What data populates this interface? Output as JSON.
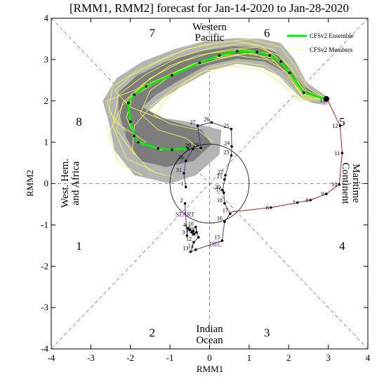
{
  "chart_data": {
    "type": "scatter",
    "title": "[RMM1, RMM2] forecast for Jan-14-2020 to Jan-28-2020",
    "xlabel": "RMM1",
    "ylabel": "RMM2",
    "xlim": [
      -4,
      4
    ],
    "ylim": [
      -4,
      4
    ],
    "x_ticks": [
      "-4",
      "-3",
      "-2",
      "-1",
      "0",
      "1",
      "2",
      "3",
      "4"
    ],
    "y_ticks": [
      "-4",
      "-3",
      "-2",
      "-1",
      "0",
      "1",
      "2",
      "3",
      "4"
    ],
    "phase_labels": [
      {
        "text": "1",
        "x": -3.3,
        "y": -1.5
      },
      {
        "text": "2",
        "x": -1.45,
        "y": -3.6
      },
      {
        "text": "3",
        "x": 1.45,
        "y": -3.6
      },
      {
        "text": "4",
        "x": 3.35,
        "y": -1.5
      },
      {
        "text": "5",
        "x": 3.35,
        "y": 1.5
      },
      {
        "text": "6",
        "x": 1.45,
        "y": 3.65
      },
      {
        "text": "7",
        "x": -1.45,
        "y": 3.65
      },
      {
        "text": "8",
        "x": -3.3,
        "y": 1.5
      }
    ],
    "region_labels": {
      "top": [
        "Western",
        "Pacific"
      ],
      "bottom": [
        "Indian",
        "Ocean"
      ],
      "left": [
        "West. Hem.",
        "and Africa"
      ],
      "right": [
        "Maritime",
        "Continent"
      ]
    },
    "legend": [
      {
        "label": "CFSv2 Ensemble",
        "color": "#00ee00"
      },
      {
        "label": "CFSv2 Members",
        "color": "#ffff66"
      }
    ],
    "observed": {
      "color": "#b22222",
      "days": [
        {
          "label": "6",
          "x": 1.55,
          "y": -0.58
        },
        {
          "label": "7",
          "x": 2.22,
          "y": -0.46
        },
        {
          "label": "8",
          "x": 2.55,
          "y": -0.4
        },
        {
          "label": "9",
          "x": 2.95,
          "y": -0.25
        },
        {
          "label": "10",
          "x": 3.28,
          "y": -0.02
        },
        {
          "label": "11",
          "x": 3.35,
          "y": 0.74
        },
        {
          "label": "12",
          "x": 3.3,
          "y": 1.4
        },
        {
          "label": "13",
          "x": 2.98,
          "y": 2.02
        }
      ],
      "start_x": 0.52,
      "start_y": -0.69
    },
    "previous": {
      "color": "#5b2d8e",
      "start_label": "START",
      "month_label": "DEC",
      "days": [
        {
          "label": "2",
          "x": -0.62,
          "y": -0.48
        },
        {
          "label": "3",
          "x": -0.57,
          "y": -1.26
        },
        {
          "label": "4",
          "x": -0.55,
          "y": -1.08
        },
        {
          "label": "5",
          "x": -0.5,
          "y": -1.12
        },
        {
          "label": "6",
          "x": -0.41,
          "y": -1.15
        },
        {
          "label": "7",
          "x": -0.45,
          "y": -1.18
        },
        {
          "label": "8",
          "x": -0.4,
          "y": -1.22
        },
        {
          "label": "9",
          "x": -0.33,
          "y": -1.18
        },
        {
          "label": "10",
          "x": -0.35,
          "y": -1.05
        },
        {
          "label": "11",
          "x": -0.28,
          "y": -1.3
        },
        {
          "label": "12",
          "x": -0.4,
          "y": -1.42
        },
        {
          "label": "13",
          "x": -0.48,
          "y": -1.65
        },
        {
          "label": "14",
          "x": -0.35,
          "y": -1.6
        },
        {
          "label": "15",
          "x": 0.32,
          "y": -1.38
        },
        {
          "label": "16",
          "x": 0.38,
          "y": -0.92
        },
        {
          "label": "17",
          "x": 0.52,
          "y": -0.73
        },
        {
          "label": "18",
          "x": 0.38,
          "y": -0.48
        },
        {
          "label": "19",
          "x": 0.36,
          "y": -0.22
        },
        {
          "label": "20",
          "x": 0.33,
          "y": -0.16
        },
        {
          "label": "21",
          "x": 0.38,
          "y": 0.1
        },
        {
          "label": "22",
          "x": 0.4,
          "y": 0.2
        },
        {
          "label": "23",
          "x": 0.55,
          "y": 0.68
        },
        {
          "label": "24",
          "x": 0.56,
          "y": 0.9
        },
        {
          "label": "25",
          "x": 0.55,
          "y": 1.32
        },
        {
          "label": "26",
          "x": 0.05,
          "y": 1.48
        },
        {
          "label": "27",
          "x": -0.3,
          "y": 1.4
        },
        {
          "label": "28",
          "x": -0.22,
          "y": 0.86
        },
        {
          "label": "29",
          "x": -0.42,
          "y": 0.84
        },
        {
          "label": "30",
          "x": -0.6,
          "y": 0.55
        },
        {
          "label": "31",
          "x": -0.65,
          "y": 0.25
        },
        {
          "label": "1",
          "x": -0.6,
          "y": -0.08
        }
      ]
    },
    "ensemble_mean": {
      "color": "#00ee00",
      "points": [
        {
          "x": 2.95,
          "y": 2.05
        },
        {
          "x": 2.38,
          "y": 2.2
        },
        {
          "x": 2.02,
          "y": 2.68
        },
        {
          "x": 1.8,
          "y": 2.95
        },
        {
          "x": 1.52,
          "y": 3.1
        },
        {
          "x": 1.2,
          "y": 3.18
        },
        {
          "x": 0.7,
          "y": 3.2
        },
        {
          "x": 0.25,
          "y": 3.1
        },
        {
          "x": -0.25,
          "y": 2.92
        },
        {
          "x": -0.95,
          "y": 2.62
        },
        {
          "x": -1.6,
          "y": 2.35
        },
        {
          "x": -1.9,
          "y": 2.15
        },
        {
          "x": -2.05,
          "y": 1.95
        },
        {
          "x": -2.0,
          "y": 1.5
        },
        {
          "x": -1.9,
          "y": 1.15
        },
        {
          "x": -1.8,
          "y": 1.0
        },
        {
          "x": -1.3,
          "y": 0.85
        },
        {
          "x": -0.95,
          "y": 0.82
        },
        {
          "x": -0.55,
          "y": 0.85
        }
      ]
    },
    "spread_outer": [
      {
        "x": 3.05,
        "y": 2.05
      },
      {
        "x": 2.95,
        "y": 1.9
      },
      {
        "x": 2.6,
        "y": 1.95
      },
      {
        "x": 2.35,
        "y": 2.05
      },
      {
        "x": 2.05,
        "y": 2.3
      },
      {
        "x": 1.75,
        "y": 2.6
      },
      {
        "x": 1.35,
        "y": 2.8
      },
      {
        "x": 0.7,
        "y": 2.9
      },
      {
        "x": 0.05,
        "y": 2.75
      },
      {
        "x": -0.7,
        "y": 2.35
      },
      {
        "x": -1.2,
        "y": 2.05
      },
      {
        "x": -1.55,
        "y": 1.75
      },
      {
        "x": -1.25,
        "y": 1.6
      },
      {
        "x": -0.55,
        "y": 1.5
      },
      {
        "x": 0.3,
        "y": 1.3
      },
      {
        "x": 0.25,
        "y": 0.7
      },
      {
        "x": -0.35,
        "y": 0.2
      },
      {
        "x": -1.0,
        "y": 0.0
      },
      {
        "x": -1.9,
        "y": 0.2
      },
      {
        "x": -2.4,
        "y": 0.8
      },
      {
        "x": -2.55,
        "y": 1.5
      },
      {
        "x": -2.7,
        "y": 2.0
      },
      {
        "x": -2.35,
        "y": 2.55
      },
      {
        "x": -1.7,
        "y": 2.95
      },
      {
        "x": -0.9,
        "y": 3.25
      },
      {
        "x": -0.1,
        "y": 3.45
      },
      {
        "x": 0.65,
        "y": 3.52
      },
      {
        "x": 1.3,
        "y": 3.5
      },
      {
        "x": 1.8,
        "y": 3.4
      },
      {
        "x": 2.15,
        "y": 3.0
      },
      {
        "x": 2.45,
        "y": 2.45
      }
    ],
    "spread_inner": [
      {
        "x": 2.95,
        "y": 2.02
      },
      {
        "x": 2.55,
        "y": 2.1
      },
      {
        "x": 2.2,
        "y": 2.35
      },
      {
        "x": 1.85,
        "y": 2.72
      },
      {
        "x": 1.4,
        "y": 2.95
      },
      {
        "x": 0.7,
        "y": 3.02
      },
      {
        "x": -0.1,
        "y": 2.85
      },
      {
        "x": -0.85,
        "y": 2.45
      },
      {
        "x": -1.35,
        "y": 2.15
      },
      {
        "x": -1.7,
        "y": 1.85
      },
      {
        "x": -1.1,
        "y": 1.55
      },
      {
        "x": -0.2,
        "y": 1.3
      },
      {
        "x": 0.05,
        "y": 0.95
      },
      {
        "x": -0.4,
        "y": 0.55
      },
      {
        "x": -1.1,
        "y": 0.4
      },
      {
        "x": -1.75,
        "y": 0.55
      },
      {
        "x": -2.1,
        "y": 1.1
      },
      {
        "x": -2.3,
        "y": 1.75
      },
      {
        "x": -2.3,
        "y": 2.2
      },
      {
        "x": -1.85,
        "y": 2.6
      },
      {
        "x": -1.1,
        "y": 2.95
      },
      {
        "x": -0.25,
        "y": 3.2
      },
      {
        "x": 0.6,
        "y": 3.32
      },
      {
        "x": 1.25,
        "y": 3.3
      },
      {
        "x": 1.7,
        "y": 3.18
      },
      {
        "x": 2.05,
        "y": 2.8
      },
      {
        "x": 2.4,
        "y": 2.35
      }
    ],
    "members": [
      [
        {
          "x": 2.95,
          "y": 2.05
        },
        {
          "x": 2.35,
          "y": 2.15
        },
        {
          "x": 1.95,
          "y": 2.65
        },
        {
          "x": 1.55,
          "y": 3.05
        },
        {
          "x": 0.9,
          "y": 3.15
        },
        {
          "x": 0.2,
          "y": 3.0
        },
        {
          "x": -0.55,
          "y": 2.8
        },
        {
          "x": -1.35,
          "y": 2.45
        },
        {
          "x": -1.95,
          "y": 2.1
        },
        {
          "x": -2.1,
          "y": 1.6
        },
        {
          "x": -1.85,
          "y": 1.05
        },
        {
          "x": -1.2,
          "y": 0.8
        }
      ],
      [
        {
          "x": 2.95,
          "y": 2.05
        },
        {
          "x": 2.45,
          "y": 2.25
        },
        {
          "x": 2.05,
          "y": 2.8
        },
        {
          "x": 1.6,
          "y": 3.25
        },
        {
          "x": 0.9,
          "y": 3.4
        },
        {
          "x": 0.1,
          "y": 3.3
        },
        {
          "x": -0.8,
          "y": 3.05
        },
        {
          "x": -1.6,
          "y": 2.65
        },
        {
          "x": -2.3,
          "y": 2.15
        },
        {
          "x": -2.45,
          "y": 1.4
        },
        {
          "x": -2.1,
          "y": 0.6
        },
        {
          "x": -1.4,
          "y": 0.3
        }
      ],
      [
        {
          "x": 2.95,
          "y": 2.05
        },
        {
          "x": 2.3,
          "y": 2.05
        },
        {
          "x": 1.9,
          "y": 2.5
        },
        {
          "x": 1.4,
          "y": 2.85
        },
        {
          "x": 0.7,
          "y": 2.95
        },
        {
          "x": 0.0,
          "y": 2.8
        },
        {
          "x": -0.6,
          "y": 2.45
        },
        {
          "x": -1.1,
          "y": 2.05
        },
        {
          "x": -1.4,
          "y": 1.65
        },
        {
          "x": -1.0,
          "y": 1.45
        },
        {
          "x": -0.3,
          "y": 1.3
        },
        {
          "x": 0.1,
          "y": 1.0
        }
      ],
      [
        {
          "x": 2.95,
          "y": 2.05
        },
        {
          "x": 2.4,
          "y": 2.2
        },
        {
          "x": 2.1,
          "y": 2.7
        },
        {
          "x": 1.75,
          "y": 3.1
        },
        {
          "x": 1.2,
          "y": 3.3
        },
        {
          "x": 0.5,
          "y": 3.25
        },
        {
          "x": -0.3,
          "y": 3.1
        },
        {
          "x": -1.0,
          "y": 2.85
        },
        {
          "x": -1.7,
          "y": 2.4
        },
        {
          "x": -2.2,
          "y": 1.95
        },
        {
          "x": -2.35,
          "y": 1.3
        },
        {
          "x": -1.9,
          "y": 0.7
        }
      ],
      [
        {
          "x": 2.95,
          "y": 2.05
        },
        {
          "x": 2.35,
          "y": 2.1
        },
        {
          "x": 2.0,
          "y": 2.6
        },
        {
          "x": 1.65,
          "y": 2.95
        },
        {
          "x": 1.1,
          "y": 3.15
        },
        {
          "x": 0.4,
          "y": 3.1
        },
        {
          "x": -0.4,
          "y": 2.9
        },
        {
          "x": -1.1,
          "y": 2.6
        },
        {
          "x": -1.8,
          "y": 2.3
        },
        {
          "x": -2.6,
          "y": 2.0
        },
        {
          "x": -2.4,
          "y": 1.5
        },
        {
          "x": -1.6,
          "y": 1.0
        }
      ],
      [
        {
          "x": 2.95,
          "y": 2.05
        },
        {
          "x": 2.5,
          "y": 2.3
        },
        {
          "x": 2.15,
          "y": 2.85
        },
        {
          "x": 1.8,
          "y": 3.3
        },
        {
          "x": 1.0,
          "y": 3.5
        },
        {
          "x": 0.2,
          "y": 3.4
        },
        {
          "x": -0.6,
          "y": 3.25
        },
        {
          "x": -1.4,
          "y": 2.9
        },
        {
          "x": -2.0,
          "y": 2.6
        },
        {
          "x": -2.4,
          "y": 2.25
        },
        {
          "x": -2.0,
          "y": 1.85
        },
        {
          "x": -1.2,
          "y": 1.55
        }
      ],
      [
        {
          "x": 2.95,
          "y": 2.05
        },
        {
          "x": 2.3,
          "y": 2.0
        },
        {
          "x": 1.85,
          "y": 2.4
        },
        {
          "x": 1.3,
          "y": 2.75
        },
        {
          "x": 0.6,
          "y": 2.85
        },
        {
          "x": -0.2,
          "y": 2.7
        },
        {
          "x": -0.9,
          "y": 2.3
        },
        {
          "x": -1.45,
          "y": 1.9
        },
        {
          "x": -1.9,
          "y": 1.4
        },
        {
          "x": -1.95,
          "y": 0.8
        },
        {
          "x": -1.5,
          "y": 0.3
        },
        {
          "x": -0.9,
          "y": 0.15
        }
      ],
      [
        {
          "x": 2.95,
          "y": 2.05
        },
        {
          "x": 2.4,
          "y": 2.15
        },
        {
          "x": 2.0,
          "y": 2.75
        },
        {
          "x": 1.5,
          "y": 3.15
        },
        {
          "x": 0.8,
          "y": 3.25
        },
        {
          "x": 0.0,
          "y": 3.15
        },
        {
          "x": -0.7,
          "y": 2.95
        },
        {
          "x": -1.5,
          "y": 2.55
        },
        {
          "x": -2.2,
          "y": 1.9
        },
        {
          "x": -2.55,
          "y": 1.2
        },
        {
          "x": -2.3,
          "y": 0.5
        },
        {
          "x": -1.7,
          "y": 0.2
        }
      ],
      [
        {
          "x": 2.95,
          "y": 2.05
        },
        {
          "x": 2.35,
          "y": 2.2
        },
        {
          "x": 1.95,
          "y": 2.7
        },
        {
          "x": 1.45,
          "y": 3.0
        },
        {
          "x": 0.7,
          "y": 3.1
        },
        {
          "x": -0.1,
          "y": 3.0
        },
        {
          "x": -0.85,
          "y": 2.7
        },
        {
          "x": -1.5,
          "y": 2.25
        },
        {
          "x": -1.75,
          "y": 1.7
        },
        {
          "x": -1.3,
          "y": 1.3
        },
        {
          "x": -0.6,
          "y": 1.1
        },
        {
          "x": -0.2,
          "y": 0.8
        }
      ],
      [
        {
          "x": 2.95,
          "y": 2.05
        },
        {
          "x": 2.45,
          "y": 2.2
        },
        {
          "x": 2.05,
          "y": 2.65
        },
        {
          "x": 1.7,
          "y": 3.05
        },
        {
          "x": 1.25,
          "y": 3.35
        },
        {
          "x": 0.6,
          "y": 3.45
        },
        {
          "x": -0.2,
          "y": 3.35
        },
        {
          "x": -1.0,
          "y": 3.1
        },
        {
          "x": -1.8,
          "y": 2.75
        },
        {
          "x": -2.45,
          "y": 2.35
        },
        {
          "x": -2.55,
          "y": 1.75
        },
        {
          "x": -2.1,
          "y": 1.25
        }
      ]
    ],
    "amplitude_circle_radius": 1
  }
}
